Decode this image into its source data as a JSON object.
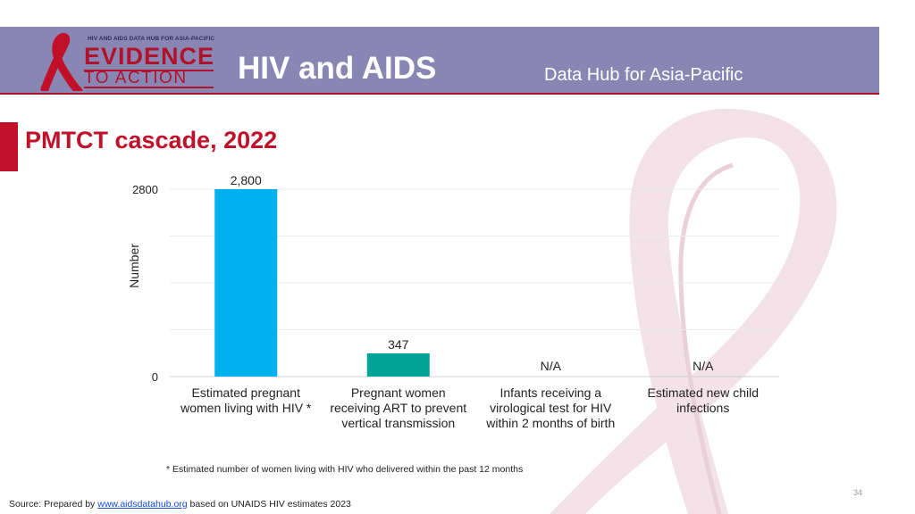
{
  "header": {
    "logo_top": "HIV AND AIDS DATA HUB FOR ASIA-PACIFIC",
    "logo_line1": "EVIDENCE",
    "logo_line2": "TO ACTION",
    "title": "HIV and AIDS",
    "subtitle": "Data Hub for Asia-Pacific"
  },
  "slide": {
    "title": "PMTCT cascade, 2022",
    "footnote": "* Estimated number of women living with HIV who delivered within the past 12 months",
    "page_number": "34",
    "source_prefix": "Source: Prepared by ",
    "source_link": "www.aidsdatahub.org",
    "source_suffix": " based on UNAIDS HIV estimates 2023"
  },
  "colors": {
    "header_bg": "#8a86b4",
    "accent_red": "#c0102a",
    "bar_blue": "#00b0ef",
    "bar_teal": "#00a496"
  },
  "chart_data": {
    "type": "bar",
    "title": "PMTCT cascade, 2022",
    "xlabel": "",
    "ylabel": "Number",
    "ylim": [
      0,
      2800
    ],
    "y_ticks": [
      "0",
      "2800"
    ],
    "grid": true,
    "categories": [
      [
        "Estimated pregnant",
        "women living with HIV *"
      ],
      [
        "Pregnant women",
        "receiving ART to prevent",
        "vertical transmission"
      ],
      [
        "Infants receiving a",
        "virological test for HIV",
        "within 2 months of birth"
      ],
      [
        "Estimated new child",
        "infections"
      ]
    ],
    "values": [
      2800,
      347,
      null,
      null
    ],
    "data_labels": [
      "2,800",
      "347",
      "N/A",
      "N/A"
    ],
    "bar_colors": [
      "#00b0ef",
      "#00a496",
      "#00a496",
      "#00a496"
    ]
  }
}
